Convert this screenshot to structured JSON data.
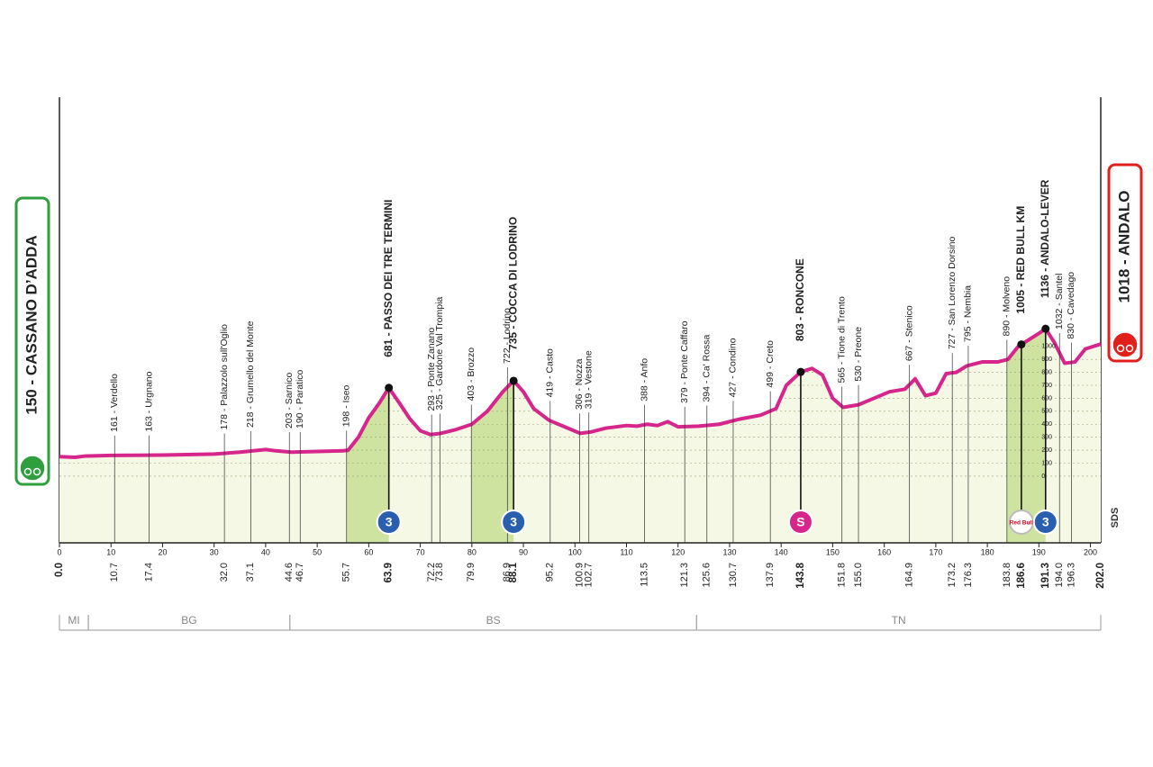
{
  "chart_data": {
    "type": "area",
    "x": [
      0,
      3,
      5,
      10,
      20,
      30,
      35,
      40,
      42,
      45,
      50,
      55,
      56,
      58,
      60,
      62,
      63.9,
      66,
      68,
      70,
      72,
      74,
      77,
      80,
      83,
      86,
      88.1,
      90,
      92,
      95,
      98,
      101,
      103,
      106,
      110,
      112,
      114,
      116,
      118,
      120,
      124,
      128,
      132,
      136,
      139,
      141,
      143.8,
      146,
      148,
      150,
      152,
      155,
      158,
      161,
      164,
      166,
      168,
      170,
      172,
      174,
      176,
      179,
      182,
      184,
      186,
      188,
      190,
      191.3,
      193,
      195,
      197,
      199,
      202
    ],
    "values": [
      150,
      145,
      155,
      160,
      162,
      170,
      185,
      205,
      195,
      185,
      190,
      195,
      200,
      300,
      450,
      560,
      681,
      560,
      440,
      350,
      320,
      330,
      360,
      400,
      500,
      650,
      735,
      650,
      520,
      430,
      380,
      330,
      340,
      370,
      390,
      385,
      400,
      390,
      420,
      380,
      385,
      400,
      440,
      470,
      520,
      700,
      803,
      830,
      780,
      600,
      530,
      550,
      600,
      650,
      670,
      750,
      620,
      640,
      790,
      800,
      850,
      880,
      880,
      900,
      1000,
      1050,
      1100,
      1136,
      1030,
      870,
      880,
      980,
      1018
    ],
    "xlim": [
      0,
      202
    ],
    "ylim": [
      -514,
      2920
    ],
    "xticks": [
      0,
      10,
      20,
      30,
      40,
      50,
      60,
      70,
      80,
      90,
      100,
      110,
      120,
      130,
      140,
      150,
      160,
      170,
      180,
      190,
      200
    ],
    "yticks": [
      0,
      100,
      200,
      300,
      400,
      500,
      600,
      700,
      800,
      900,
      1000
    ],
    "grid": true,
    "line_color": "#d6268c",
    "fill_color": "#f5f8e4",
    "climb_color": "#cfe3a0",
    "climbs": [
      {
        "from": 55.7,
        "to": 63.9
      },
      {
        "from": 79.9,
        "to": 88.1
      },
      {
        "from": 183.8,
        "to": 191.3
      }
    ],
    "start": {
      "km": {
        "value": 0,
        "label": "0.0"
      },
      "label": "150 - CASSANO D’ADDA",
      "color": "#2e9e3e"
    },
    "finish": {
      "km": {
        "value": 202,
        "label": "202.0"
      },
      "label": "1018 - ANDALO",
      "color": "#e0201b"
    },
    "waypoints": [
      {
        "km": 10.7,
        "label": "161 - Verdello"
      },
      {
        "km": 17.4,
        "label": "163 - Urgnano"
      },
      {
        "km": {
          "value": 32,
          "label": "32.0"
        },
        "label": "178 - Palazzolo sull'Oglio"
      },
      {
        "km": 37.1,
        "label": "218 - Grumello del Monte"
      },
      {
        "km": 44.6,
        "label": "203 - Sarnico"
      },
      {
        "km": 46.7,
        "label": "190 - Paratico"
      },
      {
        "km": 55.7,
        "label": "198 - Iseo"
      },
      {
        "km": 63.9,
        "label": "681 - PASSO DEI TRE TERMINI",
        "major": true
      },
      {
        "km": 72.2,
        "label": "293 - Ponte Zanano"
      },
      {
        "km": 73.8,
        "label": "325 - Gardone Val Trompia"
      },
      {
        "km": 79.9,
        "label": "403 - Brozzo"
      },
      {
        "km": 86.9,
        "label": "722 - Lodrino"
      },
      {
        "km": 88.1,
        "label": "735 - COCCA DI LODRINO",
        "major": true
      },
      {
        "km": 95.2,
        "label": "419 - Casto"
      },
      {
        "km": 100.9,
        "label": "306 - Nozza"
      },
      {
        "km": 102.7,
        "label": "319 - Vestone"
      },
      {
        "km": 113.5,
        "label": "388 - Anfo"
      },
      {
        "km": 121.3,
        "label": "379 - Ponte Caffaro"
      },
      {
        "km": 125.6,
        "label": "394 - Ca' Rossa"
      },
      {
        "km": 130.7,
        "label": "427 - Condino"
      },
      {
        "km": 137.9,
        "label": "499 - Creto"
      },
      {
        "km": 143.8,
        "label": "803 - RONCONE",
        "major": true
      },
      {
        "km": 151.8,
        "label": "565 - Tione di Trento"
      },
      {
        "km": {
          "value": 155,
          "label": "155.0"
        },
        "label": "530 - Preone"
      },
      {
        "km": 164.9,
        "label": "667 - Stenico"
      },
      {
        "km": 173.2,
        "label": "727 - San Lorenzo Dorsino"
      },
      {
        "km": 176.3,
        "label": "795 - Nembia"
      },
      {
        "km": 183.8,
        "label": "890 - Molveno"
      },
      {
        "km": 186.6,
        "label": "1005 - RED BULL KM",
        "major": true
      },
      {
        "km": 191.3,
        "label": "1136 - ANDALO-LEVER",
        "major": true
      },
      {
        "km": {
          "value": 194,
          "label": "194.0"
        },
        "label": "1032 - Santel"
      },
      {
        "km": 196.3,
        "label": "830 - Cavedago"
      }
    ],
    "markers": [
      {
        "km": 63.9,
        "label": "3",
        "color": "#2a5fb0"
      },
      {
        "km": 88.1,
        "label": "3",
        "color": "#2a5fb0"
      },
      {
        "km": 143.8,
        "label": "S",
        "color": "#d6268c"
      },
      {
        "km": 186.6,
        "label": "Red Bull",
        "color": "#ffffff"
      },
      {
        "km": 191.3,
        "label": "3",
        "color": "#2a5fb0"
      }
    ],
    "regions": [
      {
        "name": "MI",
        "from": 0,
        "to": 5.6
      },
      {
        "name": "BG",
        "from": 5.6,
        "to": 44.7
      },
      {
        "name": "BS",
        "from": 44.7,
        "to": 123.6
      },
      {
        "name": "TN",
        "from": 123.6,
        "to": 202
      }
    ],
    "logo": "SDS"
  }
}
